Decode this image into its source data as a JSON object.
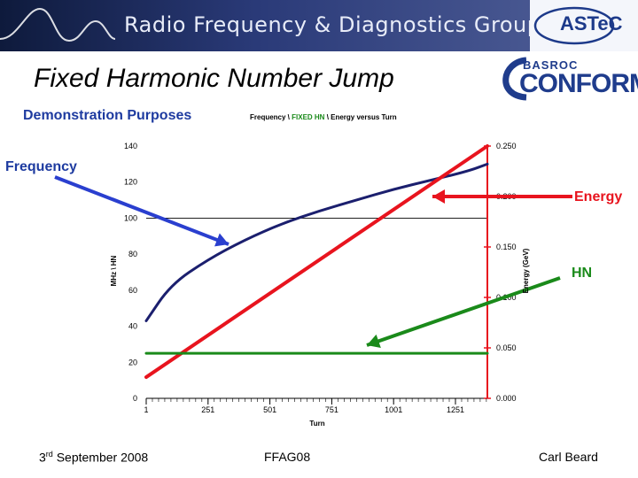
{
  "banner": {
    "title": "Radio Frequency & Diagnostics Group",
    "logo_text": "ASTeC"
  },
  "slide": {
    "title": "Fixed Harmonic Number Jump",
    "subtitle": "Demonstration Purposes",
    "logo_top": "BASROC",
    "logo_main": "CONFORM"
  },
  "labels": {
    "frequency": "Frequency",
    "energy": "Energy",
    "hn": "HN"
  },
  "colors": {
    "frequency": "#1b1f6e",
    "energy": "#e8141e",
    "hn": "#1a8a1a",
    "annotation_blue": "#2a3fcf"
  },
  "footer": {
    "date_prefix": "3",
    "date_sup": "rd",
    "date_rest": " September 2008",
    "event": "FFAG08",
    "author": "Carl Beard"
  },
  "chart_data": {
    "type": "line",
    "title_parts": [
      "Frequency \\ ",
      "FIXED HN",
      " \\ Energy versus Turn"
    ],
    "xlabel": "Turn",
    "ylabel_left": "MHz \\ HN",
    "ylabel_right": "Energy (GeV)",
    "xlim": [
      1,
      1380
    ],
    "ylim_left": [
      0,
      140
    ],
    "ylim_right": [
      0,
      0.25
    ],
    "x_ticks": [
      "1",
      "251",
      "501",
      "751",
      "1001",
      "1251"
    ],
    "x_tick_values": [
      1,
      251,
      501,
      751,
      1001,
      1251
    ],
    "y_ticks_left": [
      "0",
      "20",
      "40",
      "60",
      "80",
      "100",
      "120",
      "140"
    ],
    "y_ticks_right": [
      "0.000",
      "0.050",
      "0.100",
      "0.150",
      "0.200",
      "0.250"
    ],
    "series": [
      {
        "axis": "left",
        "x": [
          1,
          100,
          250,
          400,
          550,
          700,
          850,
          1000,
          1150,
          1300,
          1380
        ],
        "y": [
          43,
          63,
          77,
          88,
          97,
          104,
          110,
          116,
          121,
          126,
          130
        ]
      },
      {
        "axis": "right",
        "x": [
          1,
          1380
        ],
        "y": [
          0.021,
          0.25
        ]
      },
      {
        "axis": "left",
        "x": [
          1,
          1380
        ],
        "y": [
          25,
          25
        ]
      }
    ]
  }
}
